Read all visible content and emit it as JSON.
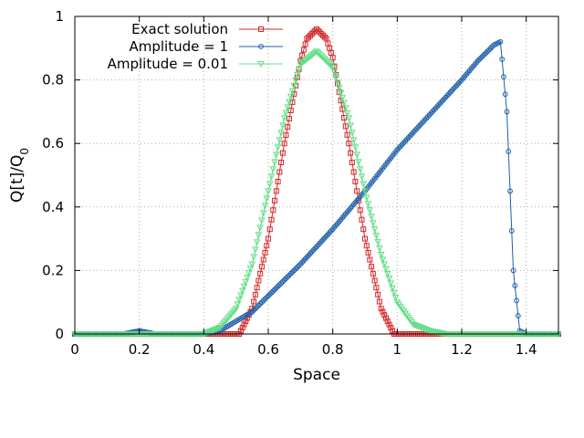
{
  "chart_data": {
    "type": "line",
    "title": "",
    "xlabel": "Space",
    "ylabel_main": "Q[t]/Q",
    "ylabel_sub": "0",
    "xlim": [
      0,
      1.5
    ],
    "ylim": [
      0,
      1
    ],
    "xticks": [
      "0",
      "0.2",
      "0.4",
      "0.6",
      "0.8",
      "1",
      "1.2",
      "1.4"
    ],
    "xtick_values": [
      0,
      0.2,
      0.4,
      0.6,
      0.8,
      1.0,
      1.2,
      1.4
    ],
    "yticks": [
      "0",
      "0.2",
      "0.4",
      "0.6",
      "0.8",
      "1"
    ],
    "ytick_values": [
      0,
      0.2,
      0.4,
      0.6,
      0.8,
      1.0
    ],
    "grid": true,
    "legend_position": "top-left",
    "series": [
      {
        "name": "Exact solution",
        "color": "#d62728",
        "marker": "square",
        "x": [
          0,
          0.45,
          0.5,
          0.51,
          0.55,
          0.6,
          0.65,
          0.7,
          0.72,
          0.75,
          0.78,
          0.8,
          0.85,
          0.9,
          0.95,
          0.99,
          1.0,
          1.5
        ],
        "y": [
          0,
          0,
          0,
          0,
          0.08,
          0.3,
          0.6,
          0.86,
          0.93,
          0.96,
          0.93,
          0.87,
          0.6,
          0.3,
          0.08,
          0,
          0,
          0
        ]
      },
      {
        "name": "Amplitude = 1",
        "color": "#1f5fa8",
        "marker": "circle",
        "x": [
          0,
          0.15,
          0.2,
          0.25,
          0.4,
          0.45,
          0.5,
          0.55,
          0.6,
          0.7,
          0.8,
          0.9,
          1.0,
          1.1,
          1.2,
          1.25,
          1.3,
          1.32,
          1.34,
          1.36,
          1.38,
          1.4,
          1.5
        ],
        "y": [
          0,
          0,
          0.01,
          0,
          0,
          0.01,
          0.04,
          0.07,
          0.12,
          0.22,
          0.33,
          0.45,
          0.58,
          0.69,
          0.8,
          0.86,
          0.91,
          0.92,
          0.7,
          0.2,
          0.01,
          0,
          0
        ]
      },
      {
        "name": "Amplitude = 0.01",
        "color": "#66dd88",
        "marker": "triangle-down",
        "x": [
          0,
          0.4,
          0.45,
          0.5,
          0.55,
          0.6,
          0.65,
          0.7,
          0.75,
          0.8,
          0.85,
          0.9,
          0.95,
          1.0,
          1.05,
          1.1,
          1.15,
          1.2,
          1.5
        ],
        "y": [
          0,
          0,
          0.02,
          0.08,
          0.22,
          0.45,
          0.68,
          0.85,
          0.89,
          0.84,
          0.68,
          0.45,
          0.25,
          0.1,
          0.03,
          0.01,
          0,
          0,
          0
        ]
      }
    ]
  }
}
